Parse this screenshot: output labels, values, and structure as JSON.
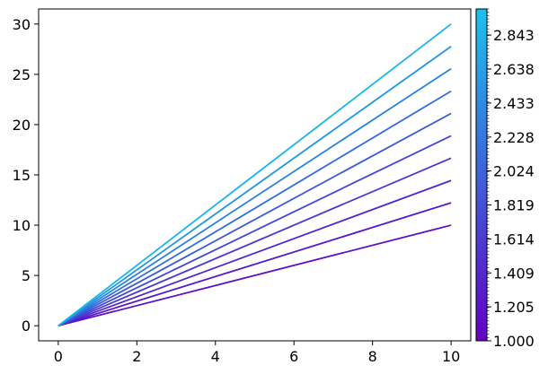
{
  "chart_data": {
    "type": "line",
    "title": "",
    "xlabel": "",
    "ylabel": "",
    "xlim": [
      -0.5,
      10.5
    ],
    "ylim": [
      -1.5,
      31.5
    ],
    "xticks": [
      "0",
      "2",
      "4",
      "6",
      "8",
      "10"
    ],
    "yticks": [
      "0",
      "5",
      "10",
      "15",
      "20",
      "25",
      "30"
    ],
    "grid": false,
    "series": [
      {
        "slope": 1.0,
        "x": [
          0,
          10
        ],
        "y": [
          0,
          10.0
        ],
        "color": "#5b10c9"
      },
      {
        "slope": 1.222,
        "x": [
          0,
          10
        ],
        "y": [
          0,
          12.22
        ],
        "color": "#5718ca"
      },
      {
        "slope": 1.444,
        "x": [
          0,
          10
        ],
        "y": [
          0,
          14.44
        ],
        "color": "#5228cd"
      },
      {
        "slope": 1.667,
        "x": [
          0,
          10
        ],
        "y": [
          0,
          16.67
        ],
        "color": "#4a38d0"
      },
      {
        "slope": 1.889,
        "x": [
          0,
          10
        ],
        "y": [
          0,
          18.89
        ],
        "color": "#4248d4"
      },
      {
        "slope": 2.111,
        "x": [
          0,
          10
        ],
        "y": [
          0,
          21.11
        ],
        "color": "#3a5ad8"
      },
      {
        "slope": 2.333,
        "x": [
          0,
          10
        ],
        "y": [
          0,
          23.33
        ],
        "color": "#326ddb"
      },
      {
        "slope": 2.556,
        "x": [
          0,
          10
        ],
        "y": [
          0,
          25.56
        ],
        "color": "#2a82df"
      },
      {
        "slope": 2.778,
        "x": [
          0,
          10
        ],
        "y": [
          0,
          27.78
        ],
        "color": "#2096e4"
      },
      {
        "slope": 3.0,
        "x": [
          0,
          10
        ],
        "y": [
          0,
          30.0
        ],
        "color": "#19b6ea"
      }
    ],
    "colorbar": {
      "range": [
        1.0,
        3.0
      ],
      "ticks": [
        "1.000",
        "1.205",
        "1.409",
        "1.614",
        "1.819",
        "2.024",
        "2.228",
        "2.433",
        "2.638",
        "2.843"
      ],
      "color_low": "#6300c8",
      "color_high": "#1ac2ee",
      "orientation": "vertical",
      "placement": "right"
    }
  }
}
